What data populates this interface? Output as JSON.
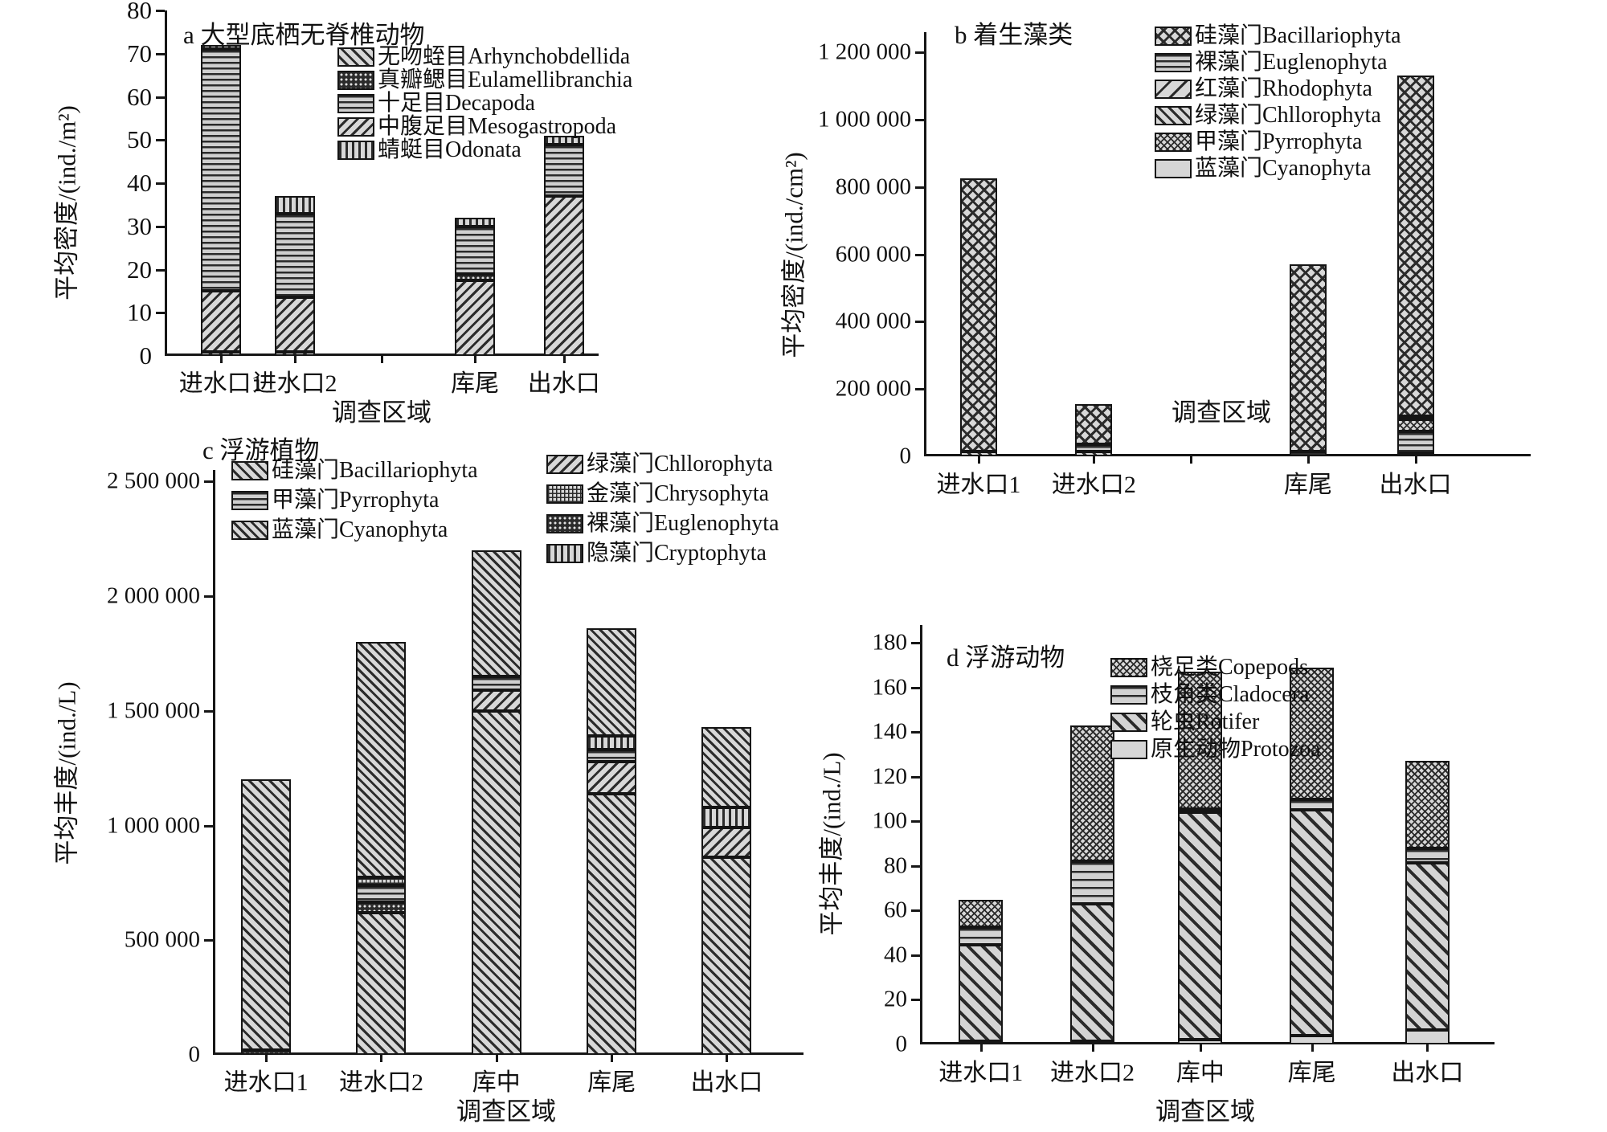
{
  "figure": {
    "description": "四幅堆叠柱状图：不同调查区域的水生生物平均密度/丰度",
    "xlabel": "调查区域"
  },
  "chart_data": [
    {
      "id": "a",
      "type": "bar",
      "stacked": true,
      "title": "a 大型底栖无脊椎动物",
      "ylabel": "平均密度/(ind./m²)",
      "xlabel": "调查区域",
      "ylim": [
        0,
        80
      ],
      "yticks": [
        {
          "v": 0,
          "label": "0"
        },
        {
          "v": 10,
          "label": "10"
        },
        {
          "v": 20,
          "label": "20"
        },
        {
          "v": 30,
          "label": "30"
        },
        {
          "v": 40,
          "label": "40"
        },
        {
          "v": 50,
          "label": "50"
        },
        {
          "v": 60,
          "label": "60"
        },
        {
          "v": 70,
          "label": "70"
        },
        {
          "v": 80,
          "label": "80"
        }
      ],
      "legend": [
        {
          "key": "arhynchobdellida",
          "label": "无吻蛭目Arhynchobdellida",
          "pattern": "diag-up"
        },
        {
          "key": "eulamellibranchia",
          "label": "真瓣鳃目Eulamellibranchia",
          "pattern": "dots-dark"
        },
        {
          "key": "decapoda",
          "label": "十足目Decapoda",
          "pattern": "hlines"
        },
        {
          "key": "mesogastropoda",
          "label": "中腹足目Mesogastropoda",
          "pattern": "diag-down"
        },
        {
          "key": "odonata",
          "label": "蜻蜓目Odonata",
          "pattern": "vlines"
        }
      ],
      "categories": [
        "进水口1",
        "进水口2",
        "库尾",
        "出水口"
      ],
      "bars": [
        {
          "category": "进水口1",
          "total": 72,
          "segments": [
            {
              "key": "arhynchobdellida",
              "value": 1
            },
            {
              "key": "mesogastropoda",
              "value": 14
            },
            {
              "key": "decapoda",
              "value": 56
            },
            {
              "key": "odonata",
              "value": 1
            }
          ]
        },
        {
          "category": "进水口2",
          "total": 37,
          "segments": [
            {
              "key": "arhynchobdellida",
              "value": 1
            },
            {
              "key": "mesogastropoda",
              "value": 12.5
            },
            {
              "key": "decapoda",
              "value": 19.5
            },
            {
              "key": "odonata",
              "value": 4
            }
          ]
        },
        {
          "category": "库尾",
          "total": 32,
          "segments": [
            {
              "key": "mesogastropoda",
              "value": 17.5
            },
            {
              "key": "eulamellibranchia",
              "value": 1.5
            },
            {
              "key": "decapoda",
              "value": 11
            },
            {
              "key": "odonata",
              "value": 2
            }
          ]
        },
        {
          "category": "出水口",
          "total": 51,
          "segments": [
            {
              "key": "mesogastropoda",
              "value": 37
            },
            {
              "key": "decapoda",
              "value": 12
            },
            {
              "key": "odonata",
              "value": 2
            }
          ]
        }
      ]
    },
    {
      "id": "b",
      "type": "bar",
      "stacked": true,
      "title": "b 着生藻类",
      "ylabel": "平均密度/(ind./cm²)",
      "xlabel": "调查区域",
      "ylim": [
        0,
        1260000
      ],
      "yticks": [
        {
          "v": 0,
          "label": "0"
        },
        {
          "v": 200000,
          "label": "200 000"
        },
        {
          "v": 400000,
          "label": "400 000"
        },
        {
          "v": 600000,
          "label": "600 000"
        },
        {
          "v": 800000,
          "label": "800 000"
        },
        {
          "v": 1000000,
          "label": "1 000 000"
        },
        {
          "v": 1200000,
          "label": "1 200 000"
        }
      ],
      "legend": [
        {
          "key": "bacillariophyta",
          "label": "硅藻门Bacillariophyta",
          "pattern": "cross"
        },
        {
          "key": "euglenophyta",
          "label": "裸藻门Euglenophyta",
          "pattern": "hlines"
        },
        {
          "key": "rhodophyta",
          "label": "红藻门Rhodophyta",
          "pattern": "rhodo"
        },
        {
          "key": "chllorophyta",
          "label": "绿藻门Chllorophyta",
          "pattern": "diag-up"
        },
        {
          "key": "pyrrophyta",
          "label": "甲藻门Pyrrophyta",
          "pattern": "fine-cross"
        },
        {
          "key": "cyanophyta",
          "label": "蓝藻门Cyanophyta",
          "pattern": "plain"
        }
      ],
      "categories": [
        "进水口1",
        "进水口2",
        "库尾",
        "出水口"
      ],
      "bars": [
        {
          "category": "进水口1",
          "total": 825000,
          "segments": [
            {
              "key": "chllorophyta",
              "value": 15000
            },
            {
              "key": "bacillariophyta",
              "value": 810000
            }
          ]
        },
        {
          "category": "进水口2",
          "total": 155000,
          "segments": [
            {
              "key": "chllorophyta",
              "value": 15000
            },
            {
              "key": "euglenophyta",
              "value": 20000
            },
            {
              "key": "bacillariophyta",
              "value": 120000
            }
          ]
        },
        {
          "category": "库尾",
          "total": 570000,
          "segments": [
            {
              "key": "euglenophyta",
              "value": 15000
            },
            {
              "key": "bacillariophyta",
              "value": 555000
            }
          ]
        },
        {
          "category": "出水口",
          "total": 1130000,
          "segments": [
            {
              "key": "cyanophyta",
              "value": 10000
            },
            {
              "key": "euglenophyta",
              "value": 65000
            },
            {
              "key": "pyrrophyta",
              "value": 35000
            },
            {
              "key": "rhodophyta",
              "value": 10000
            },
            {
              "key": "bacillariophyta",
              "value": 1010000
            }
          ]
        }
      ]
    },
    {
      "id": "c",
      "type": "bar",
      "stacked": true,
      "title": "c 浮游植物",
      "ylabel": "平均丰度/(ind./L)",
      "xlabel": "调查区域",
      "ylim": [
        0,
        2550000
      ],
      "yticks": [
        {
          "v": 0,
          "label": "0"
        },
        {
          "v": 500000,
          "label": "500 000"
        },
        {
          "v": 1000000,
          "label": "1 000 000"
        },
        {
          "v": 1500000,
          "label": "1 500 000"
        },
        {
          "v": 2000000,
          "label": "2 000 000"
        },
        {
          "v": 2500000,
          "label": "2 500 000"
        }
      ],
      "legend": [
        {
          "key": "bacillariophyta",
          "label": "硅藻门Bacillariophyta",
          "pattern": "diag-up"
        },
        {
          "key": "pyrrophyta",
          "label": "甲藻门Pyrrophyta",
          "pattern": "hlines"
        },
        {
          "key": "cyanophyta",
          "label": "蓝藻门Cyanophyta",
          "pattern": "diag-up-dense"
        },
        {
          "key": "chllorophyta",
          "label": "绿藻门Chllorophyta",
          "pattern": "diag-down"
        },
        {
          "key": "chrysophyta",
          "label": "金藻门Chrysophyta",
          "pattern": "grid"
        },
        {
          "key": "euglenophyta",
          "label": "裸藻门Euglenophyta",
          "pattern": "dots-dark"
        },
        {
          "key": "cryptophyta",
          "label": "隐藻门Cryptophyta",
          "pattern": "vlines"
        }
      ],
      "legend_columns": [
        [
          "bacillariophyta",
          "pyrrophyta",
          "cyanophyta"
        ],
        [
          "chllorophyta",
          "chrysophyta",
          "euglenophyta",
          "cryptophyta"
        ]
      ],
      "categories": [
        "进水口1",
        "进水口2",
        "库中",
        "库尾",
        "出水口"
      ],
      "bars": [
        {
          "category": "进水口1",
          "total": 1200000,
          "segments": [
            {
              "key": "euglenophyta",
              "value": 20000
            },
            {
              "key": "bacillariophyta",
              "value": 1180000
            }
          ]
        },
        {
          "category": "进水口2",
          "total": 1800000,
          "segments": [
            {
              "key": "bacillariophyta",
              "value": 620000
            },
            {
              "key": "euglenophyta",
              "value": 45000
            },
            {
              "key": "pyrrophyta",
              "value": 75000
            },
            {
              "key": "chrysophyta",
              "value": 35000
            },
            {
              "key": "cyanophyta",
              "value": 1025000
            }
          ]
        },
        {
          "category": "库中",
          "total": 2200000,
          "segments": [
            {
              "key": "bacillariophyta",
              "value": 1500000
            },
            {
              "key": "chllorophyta",
              "value": 90000
            },
            {
              "key": "pyrrophyta",
              "value": 60000
            },
            {
              "key": "cyanophyta",
              "value": 550000
            }
          ]
        },
        {
          "category": "库尾",
          "total": 1860000,
          "segments": [
            {
              "key": "bacillariophyta",
              "value": 1140000
            },
            {
              "key": "chllorophyta",
              "value": 140000
            },
            {
              "key": "pyrrophyta",
              "value": 50000
            },
            {
              "key": "cryptophyta",
              "value": 60000
            },
            {
              "key": "cyanophyta",
              "value": 470000
            }
          ]
        },
        {
          "category": "出水口",
          "total": 1430000,
          "segments": [
            {
              "key": "bacillariophyta",
              "value": 860000
            },
            {
              "key": "chllorophyta",
              "value": 130000
            },
            {
              "key": "cryptophyta",
              "value": 90000
            },
            {
              "key": "cyanophyta",
              "value": 350000
            }
          ]
        }
      ]
    },
    {
      "id": "d",
      "type": "bar",
      "stacked": true,
      "title": "d 浮游动物",
      "ylabel": "平均丰度/(ind./L)",
      "xlabel": "调查区域",
      "ylim": [
        0,
        188
      ],
      "yticks": [
        {
          "v": 0,
          "label": "0"
        },
        {
          "v": 20,
          "label": "20"
        },
        {
          "v": 40,
          "label": "40"
        },
        {
          "v": 60,
          "label": "60"
        },
        {
          "v": 80,
          "label": "80"
        },
        {
          "v": 100,
          "label": "100"
        },
        {
          "v": 120,
          "label": "120"
        },
        {
          "v": 140,
          "label": "140"
        },
        {
          "v": 160,
          "label": "160"
        },
        {
          "v": 180,
          "label": "180"
        }
      ],
      "legend": [
        {
          "key": "copepods",
          "label": "桡足类Copepods",
          "pattern": "fine-cross"
        },
        {
          "key": "cladocera",
          "label": "枝角类Cladocera",
          "pattern": "hlines-wide"
        },
        {
          "key": "rotifer",
          "label": "轮虫Rotifer",
          "pattern": "diag-up-big"
        },
        {
          "key": "protozoa",
          "label": "原生动物Protozoa",
          "pattern": "plain"
        }
      ],
      "categories": [
        "进水口1",
        "进水口2",
        "库中",
        "库尾",
        "出水口"
      ],
      "bars": [
        {
          "category": "进水口1",
          "total": 65,
          "segments": [
            {
              "key": "protozoa",
              "value": 1.5
            },
            {
              "key": "rotifer",
              "value": 43
            },
            {
              "key": "cladocera",
              "value": 8
            },
            {
              "key": "copepods",
              "value": 12.5
            }
          ]
        },
        {
          "category": "进水口2",
          "total": 143,
          "segments": [
            {
              "key": "protozoa",
              "value": 1.5
            },
            {
              "key": "rotifer",
              "value": 61.5
            },
            {
              "key": "cladocera",
              "value": 19
            },
            {
              "key": "copepods",
              "value": 61
            }
          ]
        },
        {
          "category": "库中",
          "total": 167,
          "segments": [
            {
              "key": "protozoa",
              "value": 2
            },
            {
              "key": "rotifer",
              "value": 102
            },
            {
              "key": "cladocera",
              "value": 1.5
            },
            {
              "key": "copepods",
              "value": 61.5
            }
          ]
        },
        {
          "category": "库尾",
          "total": 169,
          "segments": [
            {
              "key": "protozoa",
              "value": 4
            },
            {
              "key": "rotifer",
              "value": 101
            },
            {
              "key": "cladocera",
              "value": 5
            },
            {
              "key": "copepods",
              "value": 59
            }
          ]
        },
        {
          "category": "出水口",
          "total": 127,
          "segments": [
            {
              "key": "protozoa",
              "value": 6.5
            },
            {
              "key": "rotifer",
              "value": 75
            },
            {
              "key": "cladocera",
              "value": 6.5
            },
            {
              "key": "copepods",
              "value": 39
            }
          ]
        }
      ]
    }
  ]
}
